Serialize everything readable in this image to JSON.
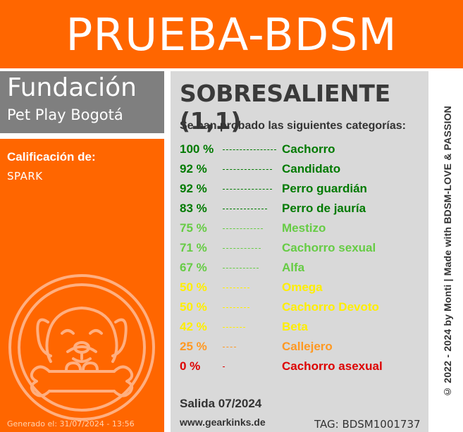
{
  "banner": {
    "title": "PRUEBA-BDSM"
  },
  "org": {
    "name": "Fundación",
    "subtitle": "Pet Play Bogotá"
  },
  "left": {
    "rating_for_label": "Calificación de:",
    "subject_name": "SPARK",
    "logo_icon": "dog-bone-emblem-icon",
    "generated": "Generado el: 31/07/2024 - 13:56"
  },
  "main": {
    "rating": "SOBRESALIENTE (1,1)",
    "intro": "Se han probado las siguientes categorías:",
    "categories": [
      {
        "percent": "100 %",
        "value": 100,
        "name": "Cachorro",
        "color": "#007a00"
      },
      {
        "percent": "92 %",
        "value": 92,
        "name": "Candidato",
        "color": "#007a00"
      },
      {
        "percent": "92 %",
        "value": 92,
        "name": "Perro guardián",
        "color": "#007a00"
      },
      {
        "percent": "83 %",
        "value": 83,
        "name": "Perro de jauría",
        "color": "#007a00"
      },
      {
        "percent": "75 %",
        "value": 75,
        "name": "Mestizo",
        "color": "#66cc44"
      },
      {
        "percent": "71 %",
        "value": 71,
        "name": "Cachorro sexual",
        "color": "#66cc44"
      },
      {
        "percent": "67 %",
        "value": 67,
        "name": "Alfa",
        "color": "#66cc44"
      },
      {
        "percent": "50 %",
        "value": 50,
        "name": "Omega",
        "color": "#ffee00"
      },
      {
        "percent": "50 %",
        "value": 50,
        "name": "Cachorro Devoto",
        "color": "#ffee00"
      },
      {
        "percent": "42 %",
        "value": 42,
        "name": "Beta",
        "color": "#ffee00"
      },
      {
        "percent": "25 %",
        "value": 25,
        "name": "Callejero",
        "color": "#ff9922"
      },
      {
        "percent": "0 %",
        "value": 0,
        "name": "Cachorro asexual",
        "color": "#dd0000"
      }
    ],
    "release": "Salida 07/2024",
    "website": "www.gearkinks.de",
    "tag": "TAG: BDSM1001737"
  },
  "side": {
    "copyright": "© 2022 - 2024 by Monti | Made with BDSM-LOVE & PASSION"
  },
  "colors": {
    "accent": "#ff6600",
    "org_box": "#7f7f7f",
    "panel": "#d9d9d9"
  }
}
